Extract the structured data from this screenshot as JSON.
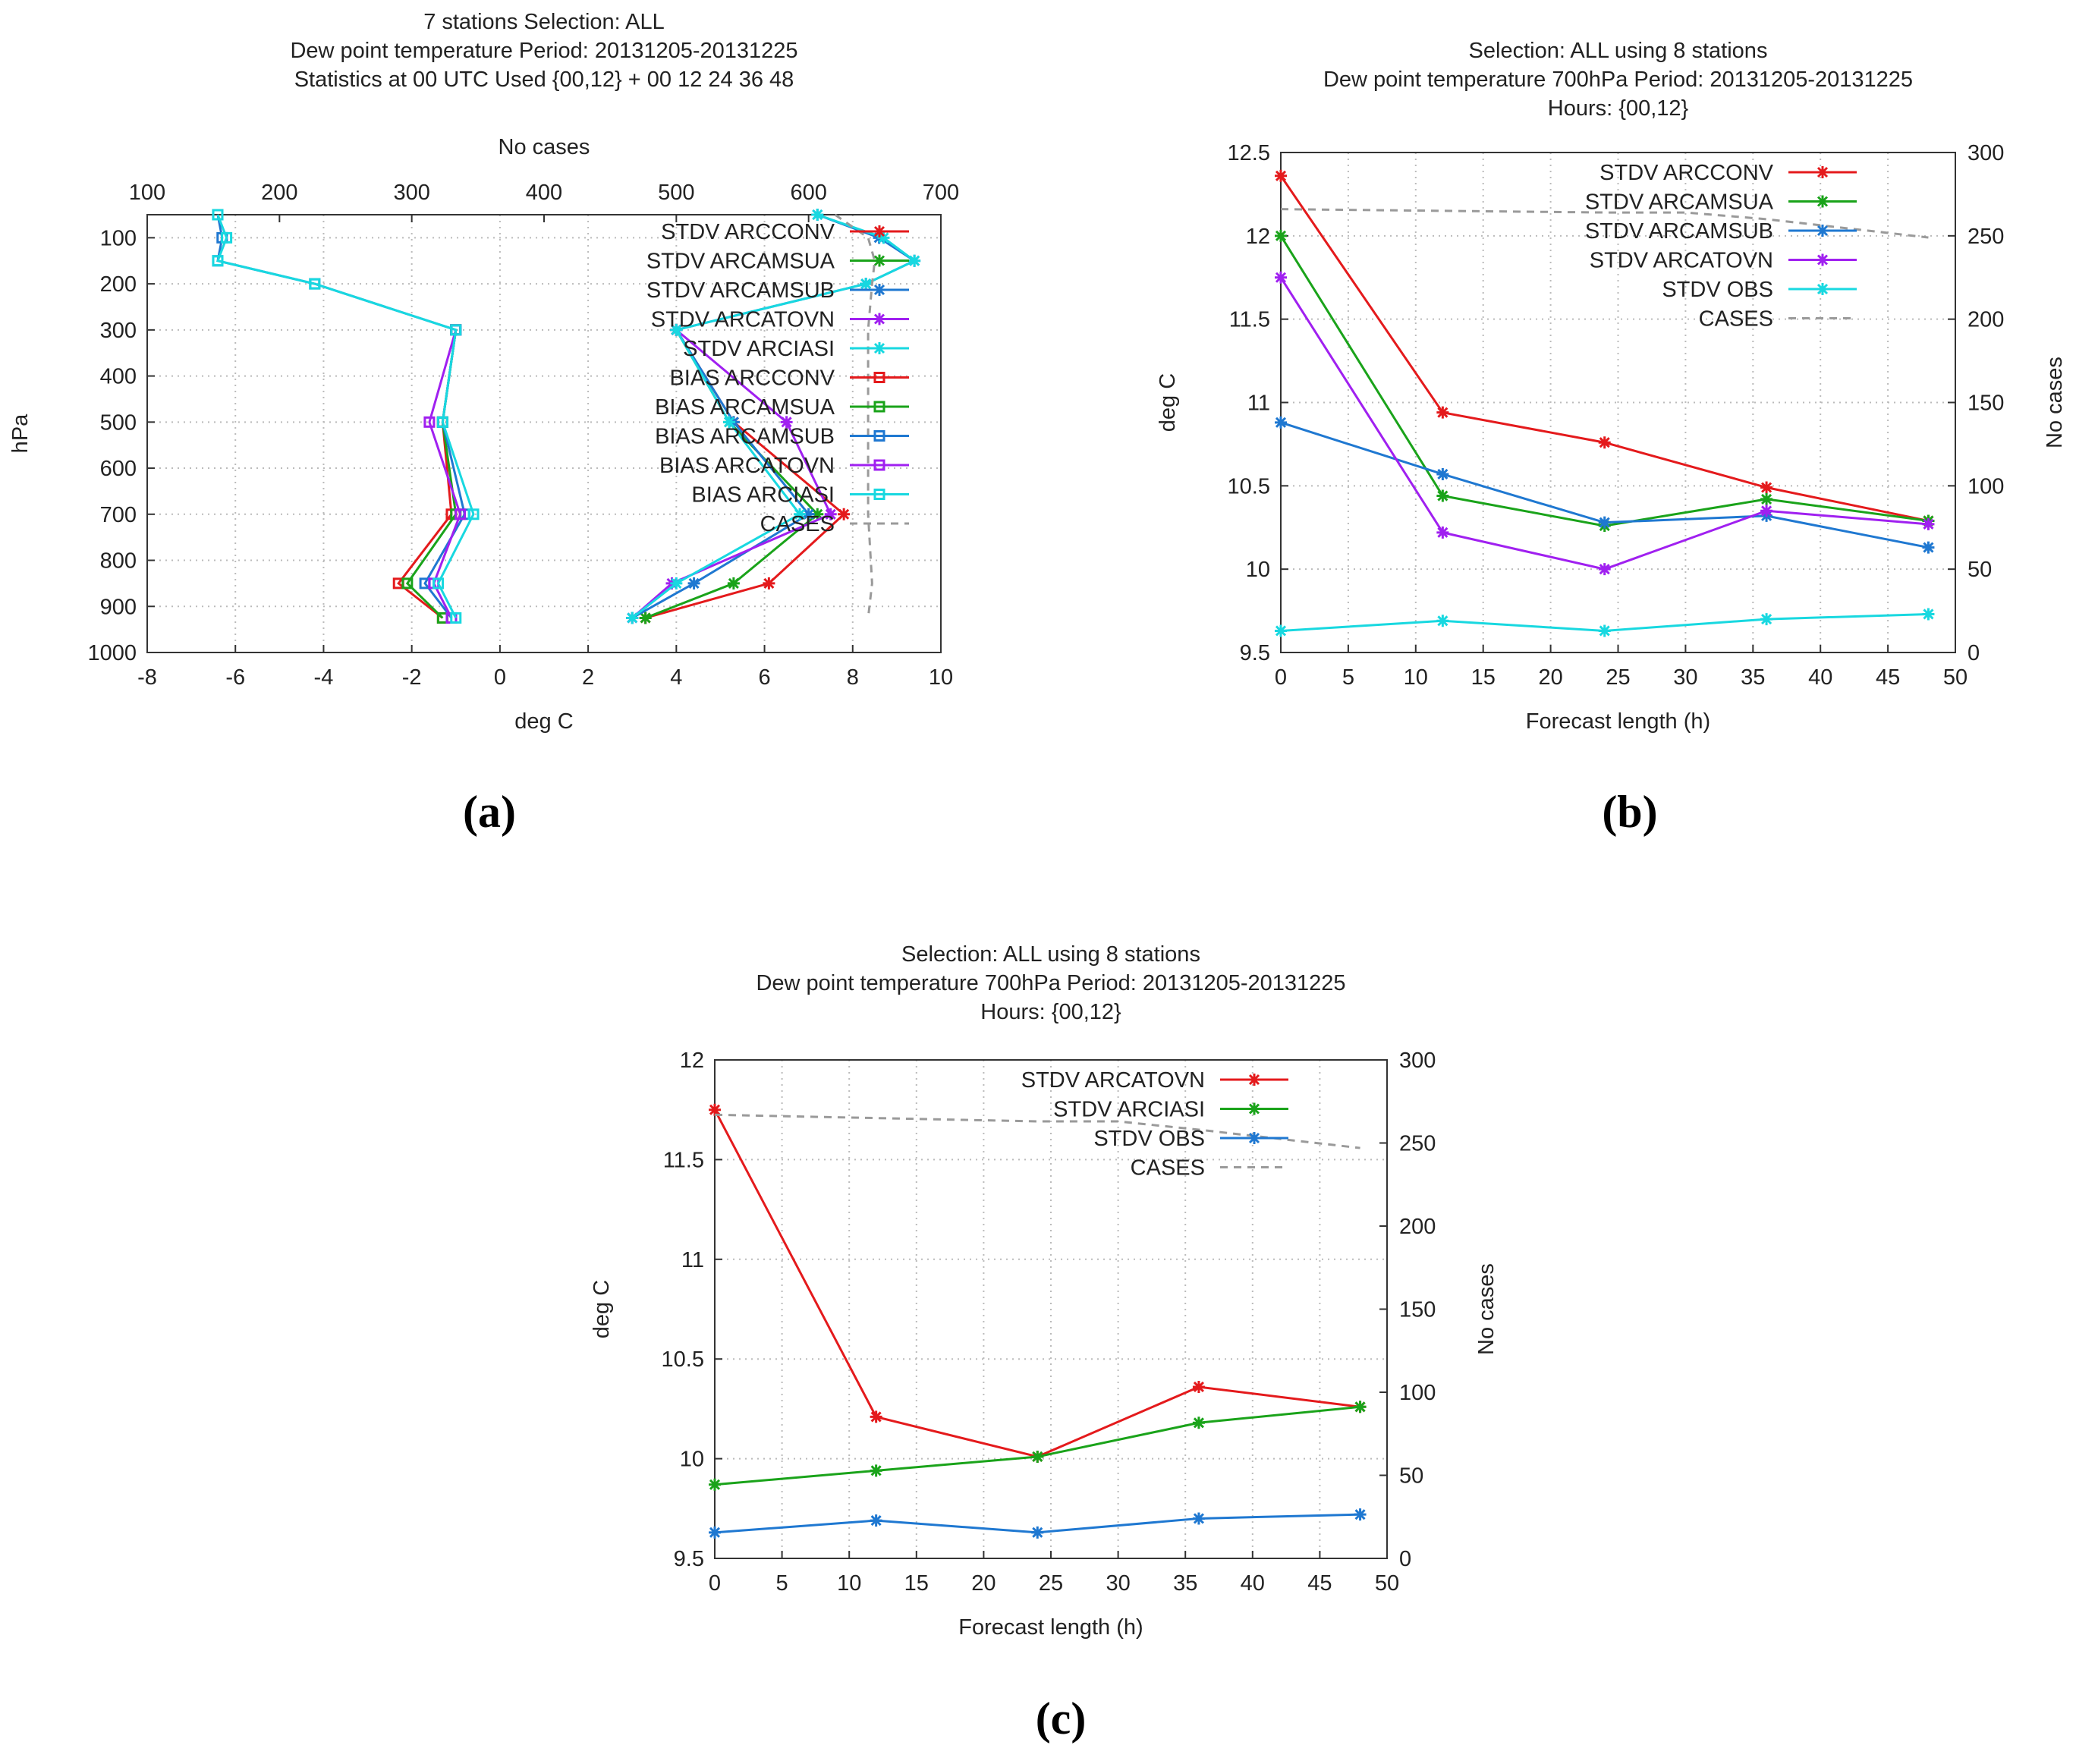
{
  "chart_data": [
    {
      "id": "a",
      "type": "line",
      "panel_label": "(a)",
      "title_lines": [
        "7 stations Selection: ALL",
        "Dew point temperature  Period: 20131205-20131225",
        "Statistics at 00 UTC  Used {00,12} + 00 12 24 36 48"
      ],
      "xlabel": "deg C",
      "ylabel": "hPa",
      "x2label": "No cases",
      "xlim": [
        -8,
        10
      ],
      "xticks": [
        "-8",
        "-6",
        "-4",
        "-2",
        "0",
        "2",
        "4",
        "6",
        "8",
        "10"
      ],
      "ylim": [
        1000,
        50
      ],
      "yticks": [
        "100",
        "200",
        "300",
        "400",
        "500",
        "600",
        "700",
        "800",
        "900",
        "1000"
      ],
      "x2lim": [
        100,
        700
      ],
      "x2ticks": [
        "100",
        "200",
        "300",
        "400",
        "500",
        "600",
        "700"
      ],
      "levels": [
        50,
        100,
        150,
        200,
        300,
        500,
        700,
        850,
        925
      ],
      "series": [
        {
          "name": "STDV ARCCONV",
          "color": "#e41a1c",
          "marker": "star",
          "values": [
            null,
            null,
            null,
            null,
            4.0,
            5.3,
            7.8,
            6.1,
            3.3
          ]
        },
        {
          "name": "STDV ARCAMSUA",
          "color": "#1aa31a",
          "marker": "star",
          "values": [
            null,
            null,
            null,
            null,
            4.0,
            5.2,
            7.2,
            5.3,
            3.3
          ]
        },
        {
          "name": "STDV ARCAMSUB",
          "color": "#1f78d1",
          "marker": "star",
          "values": [
            7.2,
            8.6,
            9.4,
            8.3,
            4.0,
            5.3,
            7.0,
            4.4,
            3.0
          ]
        },
        {
          "name": "STDV ARCATOVN",
          "color": "#a020f0",
          "marker": "star",
          "values": [
            null,
            null,
            null,
            null,
            4.0,
            6.5,
            7.5,
            3.9,
            3.0
          ]
        },
        {
          "name": "STDV ARCIASI",
          "color": "#18d8e0",
          "marker": "star",
          "values": [
            7.2,
            8.7,
            9.4,
            8.3,
            4.0,
            5.2,
            6.8,
            4.0,
            3.0
          ]
        },
        {
          "name": "BIAS ARCCONV",
          "color": "#e41a1c",
          "marker": "square",
          "values": [
            null,
            null,
            null,
            null,
            -1.0,
            -1.3,
            -1.1,
            -2.3,
            -1.3
          ]
        },
        {
          "name": "BIAS ARCAMSUA",
          "color": "#1aa31a",
          "marker": "square",
          "values": [
            null,
            null,
            null,
            null,
            -1.0,
            -1.3,
            -1.0,
            -2.1,
            -1.3
          ]
        },
        {
          "name": "BIAS ARCAMSUB",
          "color": "#1f78d1",
          "marker": "square",
          "values": [
            -6.4,
            -6.3,
            -6.4,
            -4.2,
            -1.0,
            -1.3,
            -0.8,
            -1.7,
            -1.1
          ]
        },
        {
          "name": "BIAS ARCATOVN",
          "color": "#a020f0",
          "marker": "square",
          "values": [
            null,
            null,
            null,
            null,
            -1.0,
            -1.6,
            -0.9,
            -1.5,
            -1.1
          ]
        },
        {
          "name": "BIAS ARCIASI",
          "color": "#18d8e0",
          "marker": "square",
          "values": [
            -6.4,
            -6.2,
            -6.4,
            -4.2,
            -1.0,
            -1.3,
            -0.6,
            -1.4,
            -1.0
          ]
        },
        {
          "name": "CASES",
          "color": "#9a9a9a",
          "marker": "none",
          "dashed": true,
          "axis": "x2",
          "values": [
            620,
            645,
            650,
            648,
            645,
            645,
            645,
            648,
            645
          ]
        }
      ],
      "legend_position": "top-right"
    },
    {
      "id": "b",
      "type": "line",
      "panel_label": "(b)",
      "title_lines": [
        "Selection: ALL using     8 stations",
        "Dew point temperature 700hPa   Period: 20131205-20131225",
        "Hours: {00,12}"
      ],
      "xlabel": "Forecast length (h)",
      "ylabel": "deg C",
      "y2label": "No cases",
      "xlim": [
        0,
        50
      ],
      "xticks": [
        "0",
        "5",
        "10",
        "15",
        "20",
        "25",
        "30",
        "35",
        "40",
        "45",
        "50"
      ],
      "ylim": [
        9.5,
        12.5
      ],
      "yticks": [
        "9.5",
        "10",
        "10.5",
        "11",
        "11.5",
        "12",
        "12.5"
      ],
      "y2lim": [
        0,
        300
      ],
      "y2ticks": [
        "0",
        "50",
        "100",
        "150",
        "200",
        "250",
        "300"
      ],
      "x": [
        0,
        12,
        24,
        36,
        48
      ],
      "series": [
        {
          "name": "STDV ARCCONV",
          "color": "#e41a1c",
          "values": [
            12.36,
            10.94,
            10.76,
            10.49,
            10.29
          ]
        },
        {
          "name": "STDV ARCAMSUA",
          "color": "#1aa31a",
          "values": [
            12.0,
            10.44,
            10.26,
            10.42,
            10.29
          ]
        },
        {
          "name": "STDV ARCAMSUB",
          "color": "#1f78d1",
          "values": [
            10.88,
            10.57,
            10.28,
            10.32,
            10.13
          ]
        },
        {
          "name": "STDV ARCATOVN",
          "color": "#a020f0",
          "values": [
            11.75,
            10.22,
            10.0,
            10.35,
            10.27
          ]
        },
        {
          "name": "STDV OBS",
          "color": "#18d8e0",
          "values": [
            9.63,
            9.69,
            9.63,
            9.7,
            9.73
          ]
        },
        {
          "name": "CASES",
          "color": "#9a9a9a",
          "dashed": true,
          "axis": "y2",
          "x": [
            0,
            12,
            24,
            30,
            36,
            48
          ],
          "values": [
            266,
            265,
            264,
            264,
            260,
            249
          ]
        }
      ],
      "legend_position": "top-right"
    },
    {
      "id": "c",
      "type": "line",
      "panel_label": "(c)",
      "title_lines": [
        "Selection: ALL using     8 stations",
        "Dew point temperature 700hPa   Period: 20131205-20131225",
        "Hours: {00,12}"
      ],
      "xlabel": "Forecast length (h)",
      "ylabel": "deg C",
      "y2label": "No cases",
      "xlim": [
        0,
        50
      ],
      "xticks": [
        "0",
        "5",
        "10",
        "15",
        "20",
        "25",
        "30",
        "35",
        "40",
        "45",
        "50"
      ],
      "ylim": [
        9.5,
        12
      ],
      "yticks": [
        "9.5",
        "10",
        "10.5",
        "11",
        "11.5",
        "12"
      ],
      "y2lim": [
        0,
        300
      ],
      "y2ticks": [
        "0",
        "50",
        "100",
        "150",
        "200",
        "250",
        "300"
      ],
      "x": [
        0,
        12,
        24,
        36,
        48
      ],
      "series": [
        {
          "name": "STDV ARCATOVN",
          "color": "#e41a1c",
          "values": [
            11.75,
            10.21,
            10.01,
            10.36,
            10.26
          ]
        },
        {
          "name": "STDV ARCIASI",
          "color": "#1aa31a",
          "values": [
            9.87,
            9.94,
            10.01,
            10.18,
            10.26
          ]
        },
        {
          "name": "STDV OBS",
          "color": "#1f78d1",
          "values": [
            9.63,
            9.69,
            9.63,
            9.7,
            9.72
          ]
        },
        {
          "name": "CASES",
          "color": "#9a9a9a",
          "dashed": true,
          "axis": "y2",
          "x": [
            0,
            12,
            24,
            30,
            36,
            48
          ],
          "values": [
            267,
            265,
            263,
            263,
            258,
            247
          ]
        }
      ],
      "legend_position": "top-right"
    }
  ]
}
